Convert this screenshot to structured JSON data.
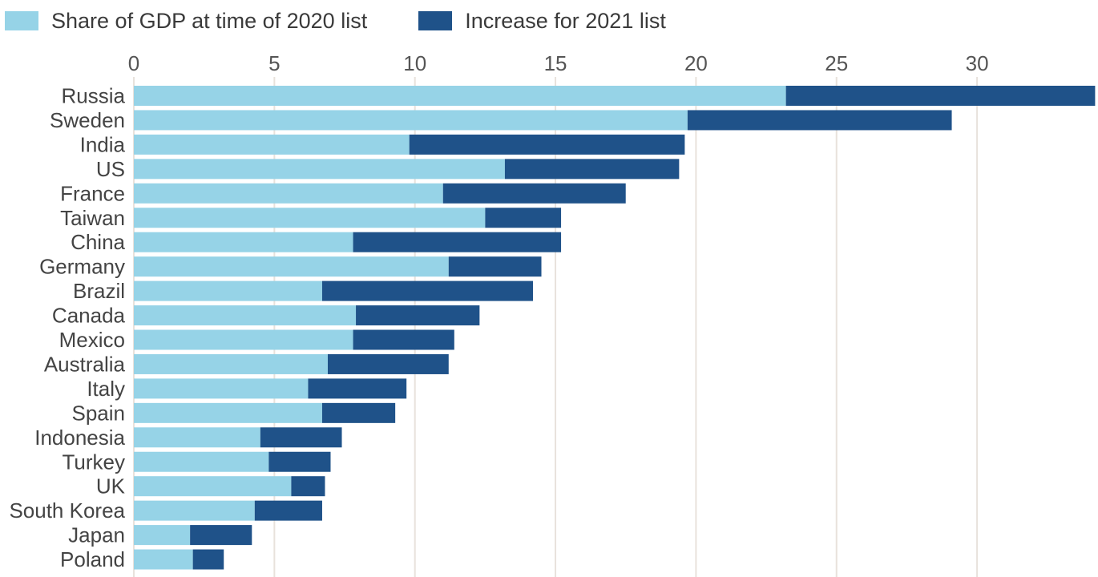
{
  "chart_data": {
    "type": "bar",
    "orientation": "horizontal",
    "stacked": true,
    "title": "",
    "xlabel": "",
    "ylabel": "",
    "xlim": [
      0,
      34
    ],
    "xticks": [
      0,
      5,
      10,
      15,
      20,
      25,
      30
    ],
    "grid": true,
    "legend_position": "top-left",
    "categories": [
      "Russia",
      "Sweden",
      "India",
      "US",
      "France",
      "Taiwan",
      "China",
      "Germany",
      "Brazil",
      "Canada",
      "Mexico",
      "Australia",
      "Italy",
      "Spain",
      "Indonesia",
      "Turkey",
      "UK",
      "South Korea",
      "Japan",
      "Poland"
    ],
    "series": [
      {
        "name": "Share of GDP at time of 2020 list",
        "color": "#96d3e7",
        "values": [
          23.2,
          19.7,
          9.8,
          13.2,
          11.0,
          12.5,
          7.8,
          11.2,
          6.7,
          7.9,
          7.8,
          6.9,
          6.2,
          6.7,
          4.5,
          4.8,
          5.6,
          4.3,
          2.0,
          2.1
        ]
      },
      {
        "name": "Increase for 2021 list",
        "color": "#1f5289",
        "values": [
          11.0,
          9.4,
          9.8,
          6.2,
          6.5,
          2.7,
          7.4,
          3.3,
          7.5,
          4.4,
          3.6,
          4.3,
          3.5,
          2.6,
          2.9,
          2.2,
          1.2,
          2.4,
          2.2,
          1.1
        ]
      }
    ]
  }
}
